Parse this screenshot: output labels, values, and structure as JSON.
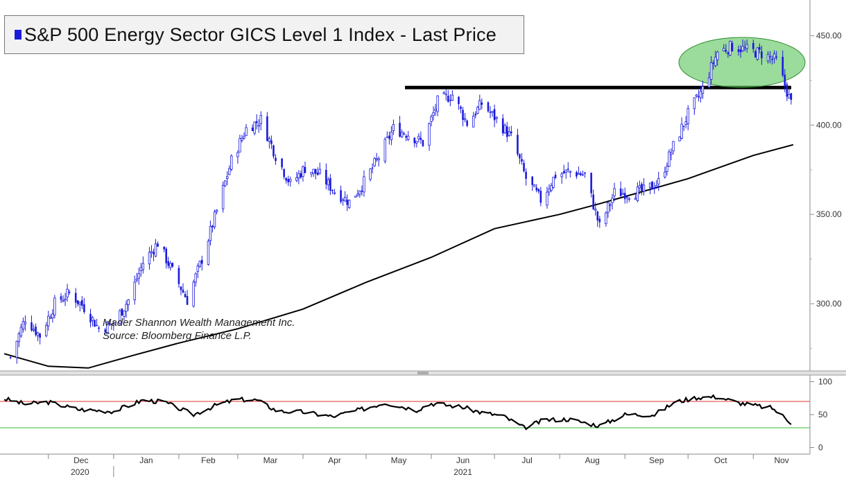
{
  "legend": {
    "label": "S&P 500 Energy Sector GICS Level 1 Index - Last Price",
    "color": "#1a1adc"
  },
  "credits": {
    "line1": "Mader Shannon Wealth Management Inc.",
    "line2": "Source: Bloomberg Finance L.P."
  },
  "chart_data": [
    {
      "type": "candlestick",
      "series": [
        {
          "name": "S&P 500 Energy Sector GICS Level 1 Index - Last Price",
          "kind": "candlestick",
          "color": "#1a1adc"
        },
        {
          "name": "",
          "kind": "moving-average-line",
          "color": "#000000"
        }
      ],
      "close_points": [
        [
          "2020-11-13",
          270
        ],
        [
          "2020-11-20",
          292
        ],
        [
          "2020-11-27",
          282
        ],
        [
          "2020-12-04",
          300
        ],
        [
          "2020-12-11",
          306
        ],
        [
          "2020-12-18",
          298
        ],
        [
          "2020-12-25",
          286
        ],
        [
          "2021-01-01",
          289
        ],
        [
          "2021-01-08",
          302
        ],
        [
          "2021-01-15",
          323
        ],
        [
          "2021-01-22",
          334
        ],
        [
          "2021-01-29",
          318
        ],
        [
          "2021-02-05",
          302
        ],
        [
          "2021-02-12",
          325
        ],
        [
          "2021-02-19",
          352
        ],
        [
          "2021-02-26",
          380
        ],
        [
          "2021-03-05",
          398
        ],
        [
          "2021-03-12",
          403
        ],
        [
          "2021-03-19",
          383
        ],
        [
          "2021-03-26",
          367
        ],
        [
          "2021-04-02",
          376
        ],
        [
          "2021-04-09",
          372
        ],
        [
          "2021-04-16",
          363
        ],
        [
          "2021-04-23",
          357
        ],
        [
          "2021-04-30",
          368
        ],
        [
          "2021-05-07",
          382
        ],
        [
          "2021-05-14",
          398
        ],
        [
          "2021-05-21",
          395
        ],
        [
          "2021-05-28",
          390
        ],
        [
          "2021-06-04",
          413
        ],
        [
          "2021-06-11",
          417
        ],
        [
          "2021-06-18",
          401
        ],
        [
          "2021-06-25",
          412
        ],
        [
          "2021-07-02",
          403
        ],
        [
          "2021-07-09",
          393
        ],
        [
          "2021-07-16",
          370
        ],
        [
          "2021-07-23",
          358
        ],
        [
          "2021-07-30",
          372
        ],
        [
          "2021-08-06",
          374
        ],
        [
          "2021-08-13",
          372
        ],
        [
          "2021-08-20",
          343
        ],
        [
          "2021-08-27",
          362
        ],
        [
          "2021-09-03",
          362
        ],
        [
          "2021-09-10",
          363
        ],
        [
          "2021-09-17",
          368
        ],
        [
          "2021-09-24",
          388
        ],
        [
          "2021-10-01",
          406
        ],
        [
          "2021-10-08",
          420
        ],
        [
          "2021-10-15",
          441
        ],
        [
          "2021-10-22",
          444
        ],
        [
          "2021-10-29",
          442
        ],
        [
          "2021-11-05",
          440
        ],
        [
          "2021-11-12",
          436
        ],
        [
          "2021-11-19",
          412
        ]
      ],
      "moving_average_points": [
        [
          "2020-11-10",
          272
        ],
        [
          "2020-12-01",
          265
        ],
        [
          "2020-12-20",
          264
        ],
        [
          "2021-01-10",
          271
        ],
        [
          "2021-02-01",
          278
        ],
        [
          "2021-03-01",
          286
        ],
        [
          "2021-04-01",
          297
        ],
        [
          "2021-05-01",
          312
        ],
        [
          "2021-06-01",
          326
        ],
        [
          "2021-07-01",
          342
        ],
        [
          "2021-08-01",
          350
        ],
        [
          "2021-08-20",
          356
        ],
        [
          "2021-09-01",
          360
        ],
        [
          "2021-10-01",
          370
        ],
        [
          "2021-11-01",
          383
        ],
        [
          "2021-11-20",
          389
        ]
      ],
      "resistance_level": 421,
      "highlight": "green ellipse around the October–November 2021 highs (about 425–450)",
      "ylim": [
        262,
        470
      ],
      "yticks": [
        "300.00",
        "350.00",
        "400.00",
        "450.00"
      ],
      "xlabel": "",
      "ylabel": "",
      "title": ""
    },
    {
      "type": "line",
      "series": [
        {
          "name": "",
          "color": "#000000"
        }
      ],
      "points": [
        [
          "2020-11-10",
          74
        ],
        [
          "2020-11-20",
          66
        ],
        [
          "2020-12-01",
          69
        ],
        [
          "2020-12-15",
          58
        ],
        [
          "2021-01-01",
          55
        ],
        [
          "2021-01-15",
          72
        ],
        [
          "2021-01-25",
          69
        ],
        [
          "2021-02-08",
          50
        ],
        [
          "2021-02-20",
          66
        ],
        [
          "2021-03-01",
          73
        ],
        [
          "2021-03-10",
          72
        ],
        [
          "2021-03-20",
          55
        ],
        [
          "2021-04-01",
          54
        ],
        [
          "2021-04-15",
          47
        ],
        [
          "2021-04-30",
          59
        ],
        [
          "2021-05-10",
          68
        ],
        [
          "2021-05-25",
          57
        ],
        [
          "2021-06-01",
          67
        ],
        [
          "2021-06-15",
          62
        ],
        [
          "2021-06-25",
          53
        ],
        [
          "2021-07-05",
          48
        ],
        [
          "2021-07-15",
          30
        ],
        [
          "2021-07-25",
          42
        ],
        [
          "2021-08-05",
          43
        ],
        [
          "2021-08-20",
          33
        ],
        [
          "2021-09-01",
          50
        ],
        [
          "2021-09-15",
          50
        ],
        [
          "2021-09-25",
          69
        ],
        [
          "2021-10-05",
          76
        ],
        [
          "2021-10-15",
          77
        ],
        [
          "2021-10-25",
          68
        ],
        [
          "2021-11-01",
          64
        ],
        [
          "2021-11-10",
          60
        ],
        [
          "2021-11-19",
          38
        ]
      ],
      "reference_lines": [
        {
          "value": 70,
          "color": "#e03030"
        },
        {
          "value": 30,
          "color": "#2db82d"
        }
      ],
      "ylim": [
        -10,
        110
      ],
      "yticks": [
        "0",
        "50",
        "100"
      ],
      "xlabel": "",
      "ylabel": "",
      "title": ""
    }
  ],
  "xaxis": {
    "months": [
      "Dec",
      "Jan",
      "Feb",
      "Mar",
      "Apr",
      "May",
      "Jun",
      "Jul",
      "Aug",
      "Sep",
      "Oct",
      "Nov"
    ],
    "years": [
      "2020",
      "2021"
    ]
  }
}
